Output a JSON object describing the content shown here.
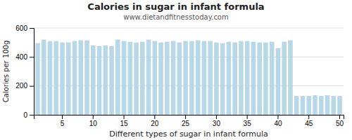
{
  "chart_data": {
    "type": "bar",
    "title": "Calories in sugar in infant formula",
    "subtitle": "www.dietandfitnesstoday.com",
    "xlabel": "Different types of sugar in infant formula",
    "ylabel": "Calories per 100g",
    "categories": [
      null,
      null,
      null,
      null,
      "5",
      null,
      null,
      null,
      null,
      "10",
      null,
      null,
      null,
      null,
      "15",
      null,
      null,
      null,
      null,
      "20",
      null,
      null,
      null,
      null,
      "25",
      null,
      null,
      null,
      null,
      "30",
      null,
      null,
      null,
      null,
      "35",
      null,
      null,
      null,
      null,
      "40",
      null,
      null,
      null,
      null,
      "45",
      null,
      null,
      null,
      null,
      "50"
    ],
    "values": [
      495,
      520,
      510,
      510,
      500,
      500,
      510,
      515,
      515,
      480,
      475,
      480,
      475,
      520,
      510,
      505,
      500,
      505,
      520,
      510,
      500,
      505,
      510,
      500,
      510,
      510,
      515,
      510,
      510,
      500,
      495,
      505,
      500,
      510,
      510,
      505,
      500,
      500,
      505,
      460,
      505,
      515,
      130,
      130,
      130,
      135,
      130,
      135,
      130,
      130
    ],
    "color": "#b8d8e8",
    "ylim": [
      0,
      600
    ],
    "yticks": [
      0,
      200,
      400,
      600
    ],
    "grid": true
  }
}
